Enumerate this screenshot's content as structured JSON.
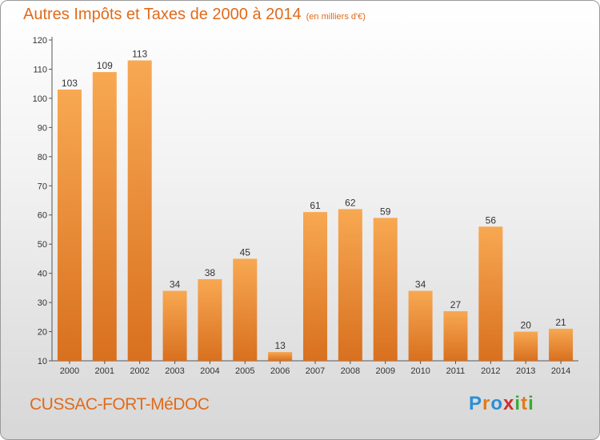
{
  "title": "Autres Impôts et Taxes de 2000 à 2014",
  "unit": "(en milliers d'€)",
  "commune": "CUSSAC-FORT-MéDOC",
  "brand": {
    "letters": [
      "P",
      "r",
      "o",
      "x",
      "i",
      "t",
      "i"
    ],
    "colors": [
      "#2a8fd6",
      "#e07b1a",
      "#2a8fd6",
      "#cf2e2e",
      "#3aaa35",
      "#e07b1a",
      "#3aaa35"
    ]
  },
  "colors": {
    "bar_top": "#f8a852",
    "bar_bottom": "#d8701f",
    "label": "#333333",
    "axis": "#555555"
  },
  "chart_data": {
    "type": "bar",
    "categories": [
      "2000",
      "2001",
      "2002",
      "2003",
      "2004",
      "2005",
      "2006",
      "2007",
      "2008",
      "2009",
      "2010",
      "2011",
      "2012",
      "2013",
      "2014"
    ],
    "values": [
      103,
      109,
      113,
      34,
      38,
      45,
      13,
      61,
      62,
      59,
      34,
      27,
      56,
      20,
      21
    ],
    "ylim": [
      10,
      120
    ],
    "yticks": [
      10,
      20,
      30,
      40,
      50,
      60,
      70,
      80,
      90,
      100,
      110,
      120
    ],
    "xlabel": "",
    "ylabel": "",
    "grid": false
  }
}
